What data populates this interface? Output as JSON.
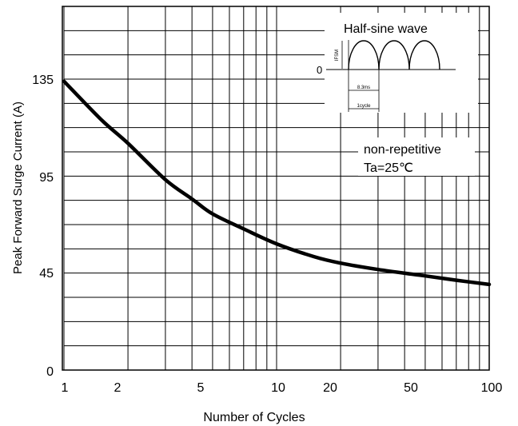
{
  "chart_data": {
    "type": "line",
    "title": "",
    "xlabel": "Number of Cycles",
    "ylabel": "Peak Forward Surge Current (A)",
    "xscale": "log",
    "xlim": [
      1,
      100
    ],
    "ylim": [
      0,
      170
    ],
    "x_ticks": [
      "1",
      "2",
      "5",
      "10",
      "20",
      "50",
      "100"
    ],
    "y_ticks": [
      "0",
      "45",
      "95",
      "135"
    ],
    "grid": true,
    "series": [
      {
        "x": [
          1,
          1.5,
          2,
          3,
          4,
          5,
          7,
          10,
          15,
          20,
          30,
          50,
          70,
          100
        ],
        "values": [
          135,
          117,
          106,
          89,
          80,
          73,
          66,
          59,
          53,
          50,
          47,
          44,
          42,
          40
        ]
      }
    ],
    "annotations": {
      "inset_title": "Half-sine wave",
      "inset_zero": "0",
      "inset_ifsm": "IFSM",
      "inset_period": "8.3ms",
      "inset_cycle": "1cycle",
      "condition_line1": "non-repetitive",
      "condition_line2": "Ta=25℃"
    }
  }
}
